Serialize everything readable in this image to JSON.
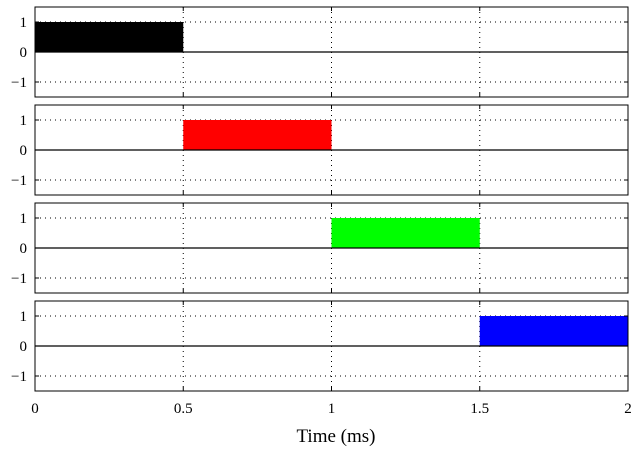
{
  "chart_data": {
    "type": "bar",
    "xlabel": "Time (ms)",
    "xlim": [
      0,
      2
    ],
    "x_ticks": [
      0,
      0.5,
      1,
      1.5,
      2
    ],
    "x_tick_labels": [
      "0",
      "0.5",
      "1",
      "1.5",
      "2"
    ],
    "ylim": [
      -1.5,
      1.5
    ],
    "y_ticks": [
      1,
      0,
      -1
    ],
    "y_tick_labels": [
      "1",
      "0",
      "−1"
    ],
    "grid": true,
    "subplots": [
      {
        "pulse_start": 0.0,
        "pulse_end": 0.5,
        "value": 1,
        "color": "#000000"
      },
      {
        "pulse_start": 0.5,
        "pulse_end": 1.0,
        "value": 1,
        "color": "#ff0000"
      },
      {
        "pulse_start": 1.0,
        "pulse_end": 1.5,
        "value": 1,
        "color": "#00ff00"
      },
      {
        "pulse_start": 1.5,
        "pulse_end": 2.0,
        "value": 1,
        "color": "#0000ff"
      }
    ]
  }
}
